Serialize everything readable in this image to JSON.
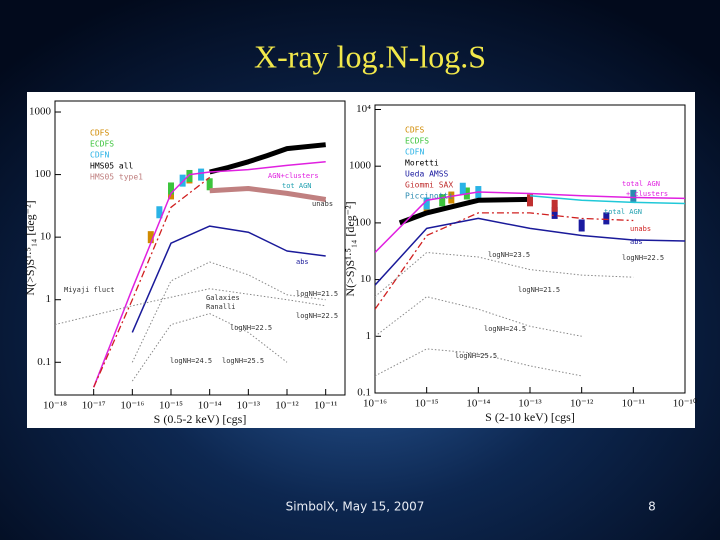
{
  "slide": {
    "title": "X-ray log.N-log.S",
    "footer": "SimbolX, May 15, 2007",
    "page_number": "8"
  },
  "chart_data": [
    {
      "type": "line",
      "x_label": "S (0.5-2 keV) [cgs]",
      "y_label": "N(>S)S¹·⁵₁₄ [deg⁻²]",
      "log_x": true,
      "log_y": true,
      "xlim": [
        1e-18,
        3.16e-11
      ],
      "ylim": [
        0.03,
        1500
      ],
      "xticks": [
        {
          "value": 1e-18,
          "label": "10⁻¹⁸"
        },
        {
          "value": 1e-17,
          "label": "10⁻¹⁷"
        },
        {
          "value": 1e-16,
          "label": "10⁻¹⁶"
        },
        {
          "value": 1e-15,
          "label": "10⁻¹⁵"
        },
        {
          "value": 1e-14,
          "label": "10⁻¹⁴"
        },
        {
          "value": 1e-13,
          "label": "10⁻¹³"
        },
        {
          "value": 1e-12,
          "label": "10⁻¹²"
        },
        {
          "value": 1e-11,
          "label": "10⁻¹¹"
        }
      ],
      "yticks": [
        0.1,
        1,
        10,
        100,
        1000
      ],
      "series": [
        {
          "name": "CDFS",
          "color": "#d08a00",
          "line_style": "points",
          "x": [
            3e-16,
            1e-15,
            3e-15
          ],
          "values": [
            10,
            50,
            90
          ]
        },
        {
          "name": "ECDFS",
          "color": "#3cc43c",
          "line_style": "points",
          "x": [
            1e-15,
            3e-15,
            1e-14
          ],
          "values": [
            60,
            95,
            70
          ]
        },
        {
          "name": "CDFN",
          "color": "#2ab3e6",
          "line_style": "points",
          "x": [
            5e-16,
            2e-15,
            6e-15
          ],
          "values": [
            25,
            80,
            100
          ]
        },
        {
          "name": "HMS05 all",
          "color": "#000000",
          "line_style": "thick",
          "x": [
            1e-14,
            3e-14,
            1e-13,
            3e-13,
            1e-12,
            1e-11
          ],
          "values": [
            110,
            130,
            160,
            200,
            260,
            300
          ]
        },
        {
          "name": "HMS05 type1",
          "color": "#c08080",
          "line_style": "thick",
          "x": [
            1e-14,
            1e-13,
            1e-12,
            1e-11
          ],
          "values": [
            55,
            60,
            50,
            40
          ]
        },
        {
          "color": "#e020e0",
          "line_style": "solid",
          "x": [
            1e-17,
            1e-16,
            1e-15,
            3e-15,
            1e-14,
            1e-13,
            1e-12,
            1e-11
          ],
          "values": [
            0.04,
            1.5,
            50,
            100,
            110,
            120,
            140,
            160
          ]
        },
        {
          "color": "#1a1a9a",
          "line_style": "solid",
          "x": [
            1e-16,
            1e-15,
            1e-14,
            1e-13,
            1e-12,
            1e-11
          ],
          "values": [
            0.3,
            8,
            15,
            12,
            6,
            5
          ]
        },
        {
          "color": "#d02020",
          "line_style": "dashdot",
          "x": [
            1e-17,
            1e-16,
            1e-15,
            1e-14
          ],
          "values": [
            0.04,
            1,
            30,
            90
          ]
        },
        {
          "color": "#888888",
          "line_style": "dotted",
          "x": [
            1e-18,
            1e-16,
            1e-14,
            1e-12,
            1e-11
          ],
          "values": [
            0.4,
            0.8,
            1.5,
            1,
            0.8
          ]
        },
        {
          "color": "#888888",
          "line_style": "dotted",
          "x": [
            1e-16,
            1e-15,
            1e-14,
            1e-13,
            1e-12,
            1e-11
          ],
          "values": [
            0.1,
            2,
            4,
            2.5,
            1.2,
            1
          ]
        },
        {
          "color": "#888888",
          "line_style": "dotted",
          "x": [
            1e-16,
            1e-15,
            1e-14,
            1e-13,
            1e-12
          ],
          "values": [
            0.05,
            0.4,
            0.6,
            0.3,
            0.1
          ]
        }
      ],
      "annotations": [
        "AGN+clusters",
        "tot AGN",
        "unabs",
        "abs",
        "Miyaji fluct",
        "Galaxies",
        "Ranalli",
        "logNH=21.5",
        "logNH=22.5",
        "logNH=22.5",
        "logNH=24.5",
        "logNH=25.5"
      ]
    },
    {
      "type": "line",
      "x_label": "S (2-10 keV) [cgs]",
      "y_label": "N(>S)S¹·⁵₁₄ [deg⁻²]",
      "log_x": true,
      "log_y": true,
      "xlim": [
        1e-16,
        1e-10
      ],
      "ylim": [
        0.1,
        12000
      ],
      "xticks": [
        {
          "value": 1e-16,
          "label": "10⁻¹⁶"
        },
        {
          "value": 1e-15,
          "label": "10⁻¹⁵"
        },
        {
          "value": 1e-14,
          "label": "10⁻¹⁴"
        },
        {
          "value": 1e-13,
          "label": "10⁻¹³"
        },
        {
          "value": 1e-12,
          "label": "10⁻¹²"
        },
        {
          "value": 1e-11,
          "label": "10⁻¹¹"
        },
        {
          "value": 1e-10,
          "label": "10⁻¹⁰"
        }
      ],
      "yticks": [
        0.1,
        1,
        10,
        100,
        1000,
        {
          "value": 10000,
          "label": "10⁴"
        }
      ],
      "series": [
        {
          "name": "CDFS",
          "color": "#d08a00",
          "line_style": "points",
          "x": [
            1e-15,
            3e-15
          ],
          "values": [
            200,
            280
          ]
        },
        {
          "name": "ECDFS",
          "color": "#3cc43c",
          "line_style": "points",
          "x": [
            2e-15,
            6e-15
          ],
          "values": [
            250,
            330
          ]
        },
        {
          "name": "CDFN",
          "color": "#2ab3e6",
          "line_style": "points",
          "x": [
            1e-15,
            5e-15,
            1e-14
          ],
          "values": [
            220,
            400,
            350
          ]
        },
        {
          "name": "Moretti",
          "color": "#000000",
          "line_style": "thick",
          "x": [
            3e-16,
            1e-15,
            1e-14,
            1e-13
          ],
          "values": [
            100,
            150,
            250,
            260
          ]
        },
        {
          "name": "Ueda AMSS",
          "color": "#1a1aa0",
          "line_style": "points",
          "x": [
            3e-13,
            1e-12,
            3e-12
          ],
          "values": [
            150,
            90,
            120
          ]
        },
        {
          "name": "Giommi SAX",
          "color": "#c03030",
          "line_style": "points",
          "x": [
            1e-13,
            3e-13
          ],
          "values": [
            250,
            200
          ]
        },
        {
          "name": "Piccinotti",
          "color": "#2a8ab0",
          "line_style": "points",
          "x": [
            1e-11
          ],
          "values": [
            300
          ]
        },
        {
          "color": "#e020e0",
          "line_style": "solid",
          "x": [
            1e-16,
            1e-15,
            1e-14,
            1e-13,
            1e-12,
            1e-11,
            1e-10
          ],
          "values": [
            30,
            250,
            350,
            330,
            300,
            280,
            270
          ]
        },
        {
          "color": "#20c8d8",
          "line_style": "solid",
          "x": [
            1e-13,
            1e-12,
            1e-11,
            1e-10
          ],
          "values": [
            300,
            250,
            230,
            220
          ]
        },
        {
          "color": "#d02020",
          "line_style": "dashdot",
          "x": [
            1e-16,
            1e-15,
            1e-14,
            1e-13,
            1e-12,
            1e-11
          ],
          "values": [
            3,
            60,
            150,
            150,
            120,
            110
          ]
        },
        {
          "color": "#1a1a9a",
          "line_style": "solid",
          "x": [
            1e-16,
            1e-15,
            1e-14,
            1e-13,
            1e-12,
            1e-11,
            1e-10
          ],
          "values": [
            8,
            80,
            120,
            80,
            60,
            50,
            48
          ]
        },
        {
          "color": "#888888",
          "line_style": "dotted",
          "x": [
            1e-16,
            1e-15,
            1e-14,
            1e-13,
            1e-12,
            1e-11
          ],
          "values": [
            5,
            30,
            25,
            15,
            12,
            11
          ]
        },
        {
          "color": "#888888",
          "line_style": "dotted",
          "x": [
            1e-16,
            1e-15,
            1e-14,
            1e-13,
            1e-12
          ],
          "values": [
            1,
            5,
            3,
            1.5,
            1
          ]
        },
        {
          "color": "#888888",
          "line_style": "dotted",
          "x": [
            1e-16,
            1e-15,
            1e-14,
            1e-13,
            1e-12
          ],
          "values": [
            0.2,
            0.6,
            0.5,
            0.3,
            0.2
          ]
        }
      ],
      "annotations": [
        "total AGN",
        "+ clusters",
        "total AGN",
        "unabs",
        "abs",
        "logNH=23.5",
        "logNH=22.5",
        "logNH=21.5",
        "logNH=24.5",
        "logNH=25.5"
      ]
    }
  ]
}
